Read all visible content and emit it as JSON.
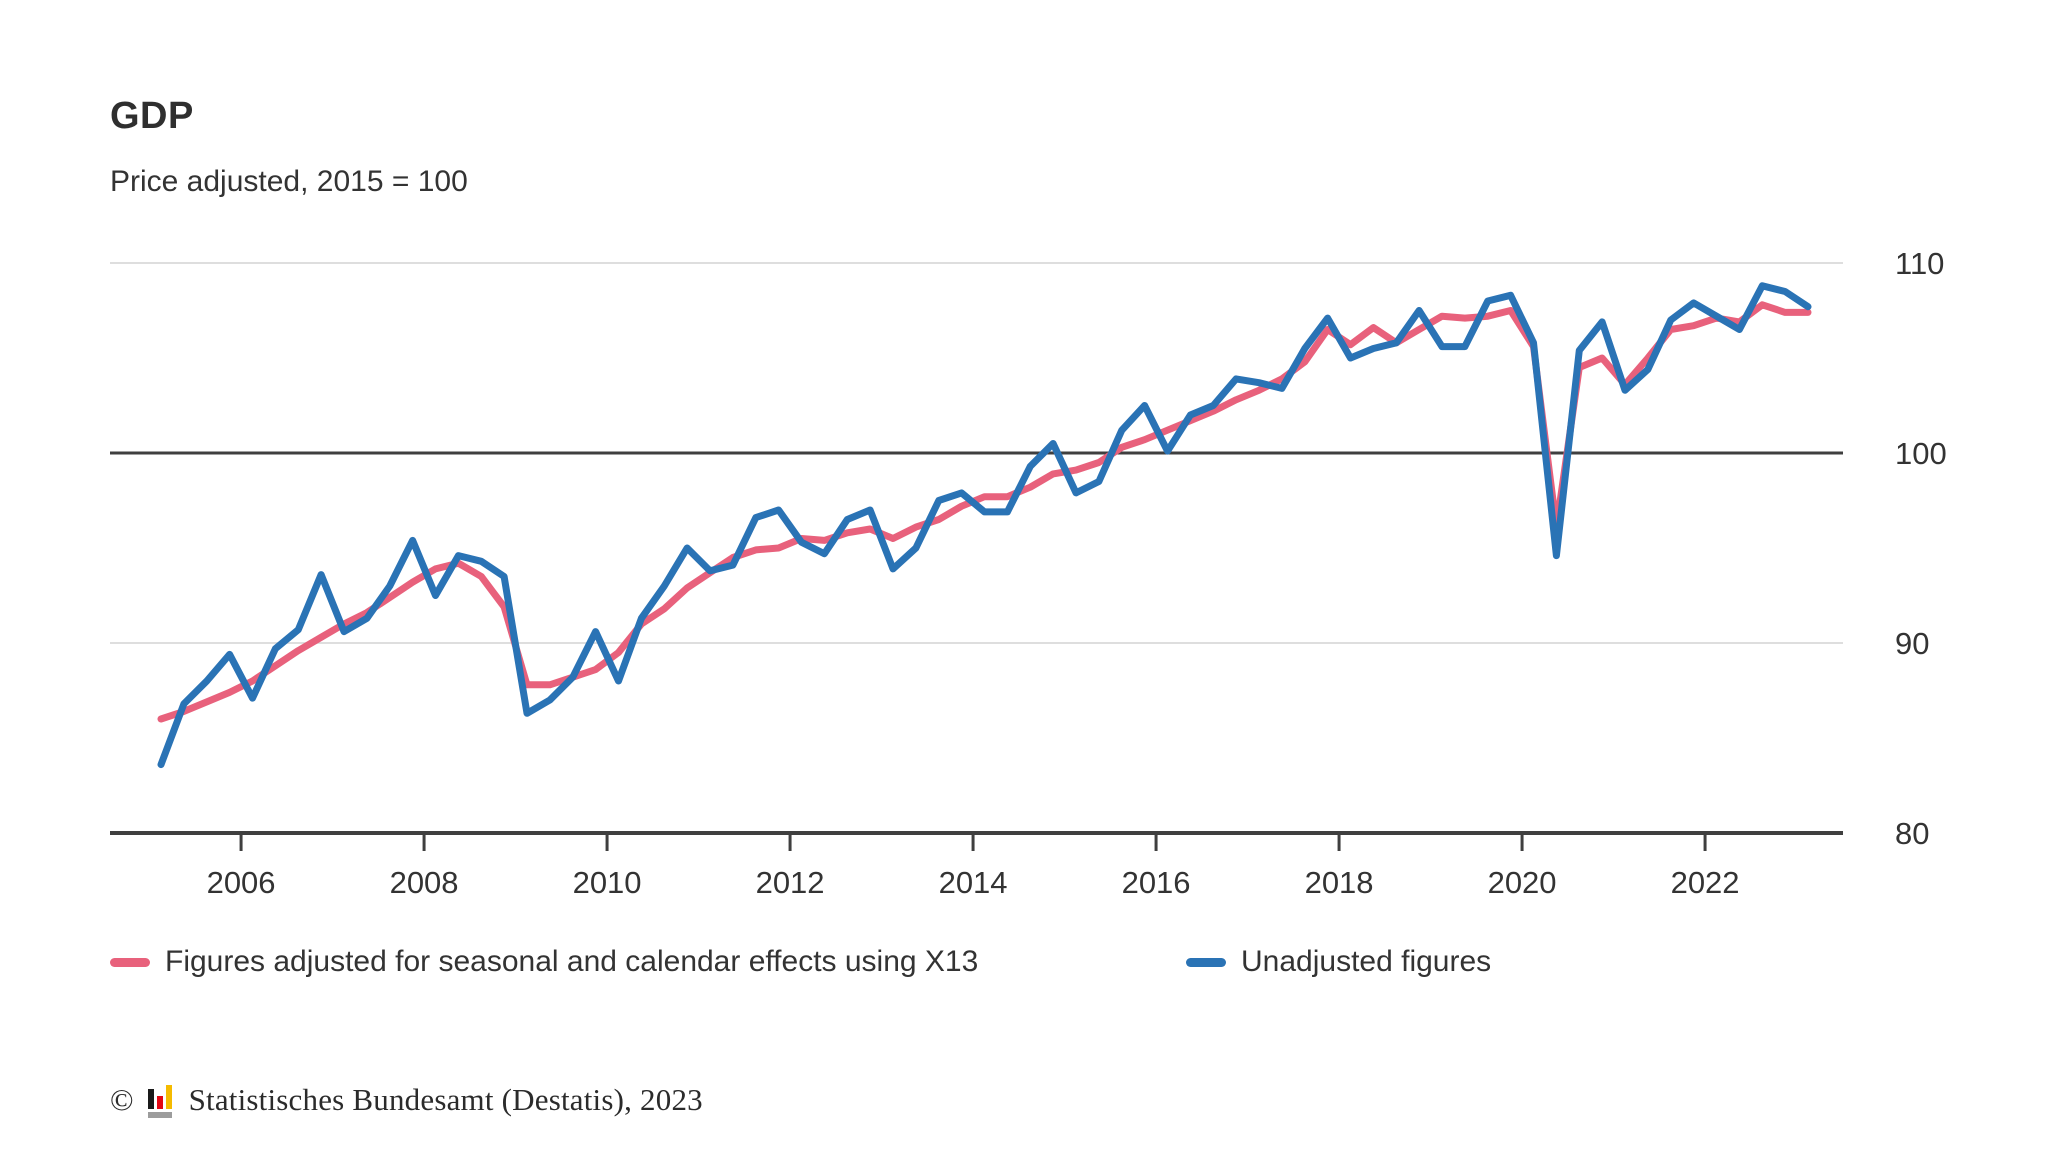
{
  "header": {
    "title": "GDP",
    "subtitle": "Price adjusted, 2015 = 100"
  },
  "chart_data": {
    "type": "line",
    "title": "GDP",
    "subtitle": "Price adjusted, 2015 = 100",
    "x_unit": "quarterly",
    "x_start": "2005 Q1",
    "x_end": "2023 Q1",
    "x_tick_years": [
      2006,
      2008,
      2010,
      2012,
      2014,
      2016,
      2018,
      2020,
      2022
    ],
    "y_ticks": [
      80,
      90,
      100,
      110
    ],
    "ylim": [
      80,
      111.5
    ],
    "baseline_value": 100,
    "grid": "horizontal",
    "legend_position": "bottom",
    "series": [
      {
        "name": "Figures adjusted for seasonal and calendar effects using X13",
        "color": "#e8617c",
        "values": [
          86.0,
          86.4,
          86.9,
          87.4,
          88.0,
          88.8,
          89.6,
          90.3,
          91.0,
          91.6,
          92.4,
          93.2,
          93.9,
          94.2,
          93.5,
          91.9,
          87.8,
          87.8,
          88.2,
          88.6,
          89.5,
          91.0,
          91.8,
          92.9,
          93.7,
          94.5,
          94.9,
          95.0,
          95.5,
          95.4,
          95.8,
          96.0,
          95.5,
          96.1,
          96.5,
          97.2,
          97.7,
          97.7,
          98.2,
          98.9,
          99.1,
          99.5,
          100.3,
          100.7,
          101.2,
          101.7,
          102.2,
          102.8,
          103.3,
          103.9,
          104.8,
          106.5,
          105.7,
          106.6,
          105.8,
          106.5,
          107.2,
          107.1,
          107.2,
          107.5,
          105.6,
          96.1,
          104.5,
          105.0,
          103.6,
          105.0,
          106.5,
          106.7,
          107.1,
          106.9,
          107.8,
          107.4,
          107.4
        ]
      },
      {
        "name": "Unadjusted figures",
        "color": "#2a73b5",
        "values": [
          83.6,
          86.8,
          88.0,
          89.4,
          87.1,
          89.7,
          90.7,
          93.6,
          90.6,
          91.3,
          93.0,
          95.4,
          92.5,
          94.6,
          94.3,
          93.5,
          86.3,
          87.0,
          88.2,
          90.6,
          88.0,
          91.3,
          93.0,
          95.0,
          93.8,
          94.1,
          96.6,
          97.0,
          95.3,
          94.7,
          96.5,
          97.0,
          93.9,
          95.0,
          97.5,
          97.9,
          96.9,
          96.9,
          99.3,
          100.5,
          97.9,
          98.5,
          101.2,
          102.5,
          100.1,
          102.0,
          102.5,
          103.9,
          103.7,
          103.4,
          105.5,
          107.1,
          105.0,
          105.5,
          105.8,
          107.5,
          105.6,
          105.6,
          108.0,
          108.3,
          105.8,
          94.6,
          105.4,
          106.9,
          103.3,
          104.4,
          107.0,
          107.9,
          107.2,
          106.5,
          108.8,
          108.5,
          107.7
        ]
      }
    ],
    "style": {
      "grid_color": "#d4d4d4",
      "baseline_color": "#3f3f3f",
      "axis_color": "#3f3f3f",
      "tick_label_color": "#333333",
      "line_width": 7
    }
  },
  "legend": {
    "items": [
      {
        "label": "Figures adjusted for seasonal and calendar effects using X13",
        "color": "#e8617c"
      },
      {
        "label": "Unadjusted figures",
        "color": "#2a73b5"
      }
    ]
  },
  "footer": {
    "copyright": "©",
    "source": "Statistisches Bundesamt (Destatis), 2023",
    "logo_colors": {
      "bar1": "#1a1a1a",
      "bar2": "#e30613",
      "bar3": "#f5bb00",
      "base": "#9c9c9c"
    }
  }
}
